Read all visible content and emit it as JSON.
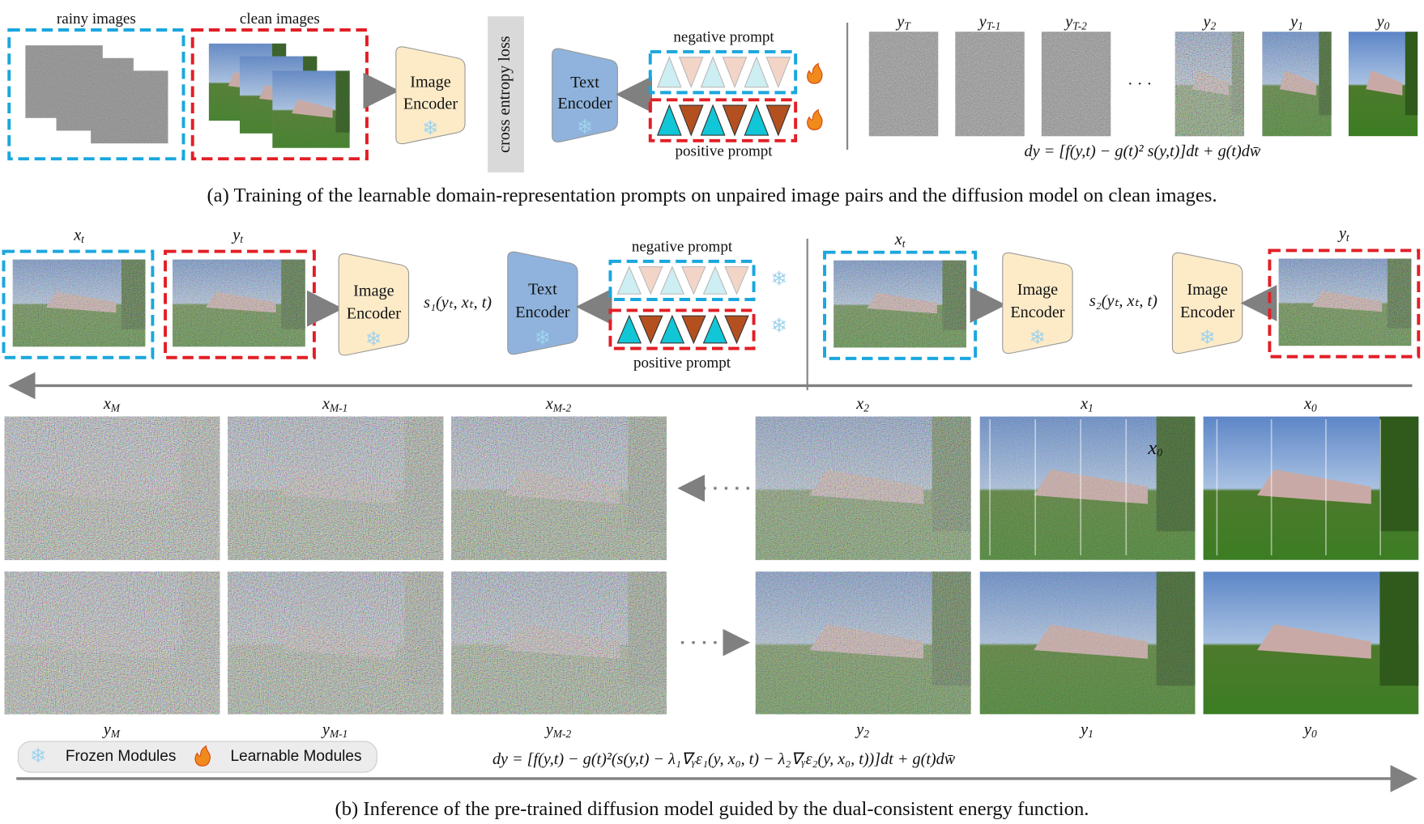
{
  "part_a": {
    "rainy_label": "rainy images",
    "clean_label": "clean images",
    "image_encoder": [
      "Image",
      "Encoder"
    ],
    "loss": "cross entropy loss",
    "text_encoder": [
      "Text",
      "Encoder"
    ],
    "negative_prompt": "negative prompt",
    "positive_prompt": "positive prompt",
    "sequence": [
      {
        "base": "y",
        "sub": "T"
      },
      {
        "base": "y",
        "sub": "T-1"
      },
      {
        "base": "y",
        "sub": "T-2"
      },
      {
        "base": "y",
        "sub": "2"
      },
      {
        "base": "y",
        "sub": "1"
      },
      {
        "base": "y",
        "sub": "0"
      }
    ],
    "ellipsis": "· · ·",
    "equation": "dy = [f(y,t) − g(t)² s(y,t)]dt + g(t)dw̄",
    "caption": "(a) Training of the learnable domain-representation prompts on unpaired image pairs and the diffusion model on clean images."
  },
  "part_b": {
    "left_x": {
      "base": "x",
      "sub": "t"
    },
    "left_y": {
      "base": "y",
      "sub": "t"
    },
    "image_encoder": [
      "Image",
      "Encoder"
    ],
    "score_1": "s₁(yₜ, xₜ, t)",
    "text_encoder": [
      "Text",
      "Encoder"
    ],
    "negative_prompt": "negative prompt",
    "positive_prompt": "positive prompt",
    "right_x": {
      "base": "x",
      "sub": "t"
    },
    "right_y": {
      "base": "y",
      "sub": "t"
    },
    "right_encoders": [
      [
        "Image",
        "Encoder"
      ],
      [
        "Image",
        "Encoder"
      ]
    ],
    "score_2": "s₂(yₜ, xₜ, t)",
    "top_row": [
      {
        "base": "x",
        "sub": "M"
      },
      {
        "base": "x",
        "sub": "M-1"
      },
      {
        "base": "x",
        "sub": "M-2"
      },
      {
        "base": "x",
        "sub": "2"
      },
      {
        "base": "x",
        "sub": "1"
      },
      {
        "base": "x",
        "sub": "0"
      }
    ],
    "bottom_row": [
      {
        "base": "y",
        "sub": "M"
      },
      {
        "base": "y",
        "sub": "M-1"
      },
      {
        "base": "y",
        "sub": "M-2"
      },
      {
        "base": "y",
        "sub": "2"
      },
      {
        "base": "y",
        "sub": "1"
      },
      {
        "base": "y",
        "sub": "0"
      }
    ],
    "overlay": {
      "base": "x",
      "sub": "0"
    },
    "legend": {
      "frozen": "Frozen Modules",
      "learnable": "Learnable Modules"
    },
    "equation": "dy = [f(y,t) − g(t)²(s(y,t) − λ₁∇ᵧε₁(y, x₀, t) − λ₂∇ᵧε₂(y, x₀, t))]dt + g(t)dw̄",
    "caption": "(b) Inference of the pre-trained diffusion model guided by the dual-consistent energy function."
  }
}
